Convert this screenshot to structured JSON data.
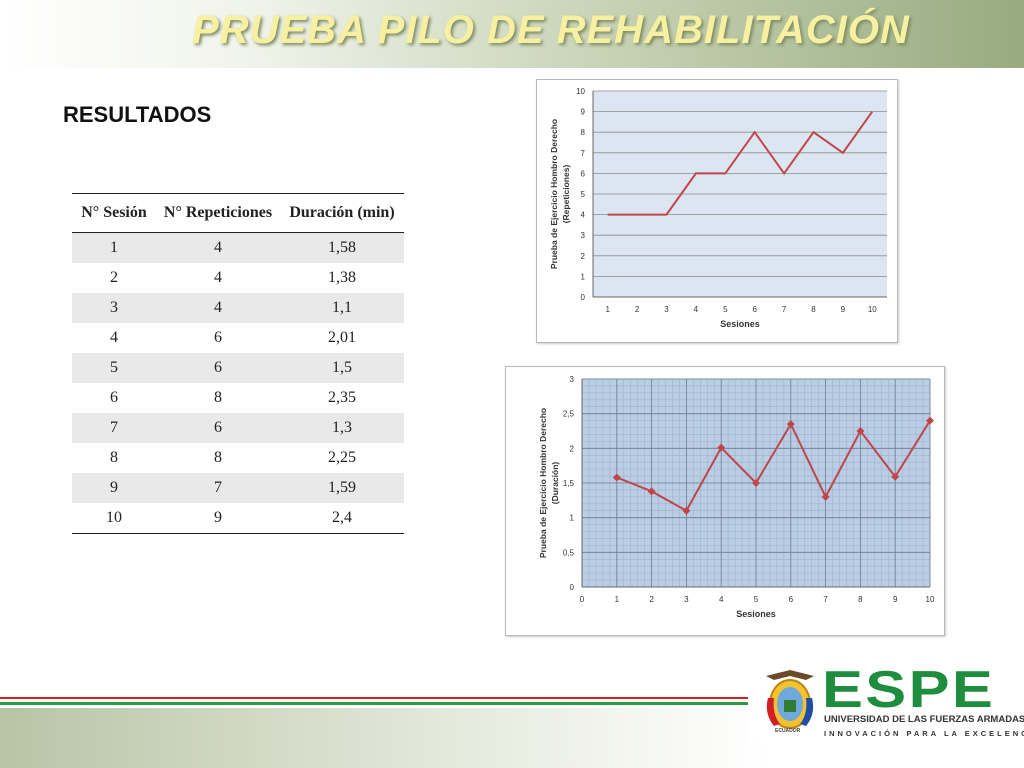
{
  "slide": {
    "title": "PRUEBA PILO DE REHABILITACIÓN",
    "subtitle": "RESULTADOS"
  },
  "table": {
    "headers": [
      "N° Sesión",
      "N° Repeticiones",
      "Duración (min)"
    ],
    "rows": [
      [
        "1",
        "4",
        "1,58"
      ],
      [
        "2",
        "4",
        "1,38"
      ],
      [
        "3",
        "4",
        "1,1"
      ],
      [
        "4",
        "6",
        "2,01"
      ],
      [
        "5",
        "6",
        "1,5"
      ],
      [
        "6",
        "8",
        "2,35"
      ],
      [
        "7",
        "6",
        "1,3"
      ],
      [
        "8",
        "8",
        "2,25"
      ],
      [
        "9",
        "7",
        "1,59"
      ],
      [
        "10",
        "9",
        "2,4"
      ]
    ]
  },
  "chart_data": [
    {
      "type": "line",
      "x": [
        1,
        2,
        3,
        4,
        5,
        6,
        7,
        8,
        9,
        10
      ],
      "values": [
        4,
        4,
        4,
        6,
        6,
        8,
        6,
        8,
        7,
        9
      ],
      "xticks": [
        "1",
        "2",
        "3",
        "4",
        "5",
        "6",
        "7",
        "8",
        "9",
        "10"
      ],
      "yticks": [
        "0",
        "1",
        "2",
        "3",
        "4",
        "5",
        "6",
        "7",
        "8",
        "9",
        "10"
      ],
      "xlabel": "Sesiones",
      "ylabel": "Prueba de Ejercicio Hombro Derecho",
      "ylabel2": "(Repeticiones)",
      "ylim": [
        0,
        10
      ],
      "grid": "horizontal",
      "markers": false
    },
    {
      "type": "line",
      "x": [
        1,
        2,
        3,
        4,
        5,
        6,
        7,
        8,
        9,
        10
      ],
      "values": [
        1.58,
        1.38,
        1.1,
        2.01,
        1.5,
        2.35,
        1.3,
        2.25,
        1.59,
        2.4
      ],
      "xticks": [
        "0",
        "1",
        "2",
        "3",
        "4",
        "5",
        "6",
        "7",
        "8",
        "9",
        "10"
      ],
      "yticks": [
        "0",
        "0,5",
        "1",
        "1,5",
        "2",
        "2,5",
        "3"
      ],
      "xlabel": "Sesiones",
      "ylabel": "Prueba de Ejercicio Hombro Derecho",
      "ylabel2": "(Duración)",
      "xlim": [
        0,
        10
      ],
      "ylim": [
        0,
        3
      ],
      "grid": "major-minor",
      "markers": true
    }
  ],
  "colors": {
    "line": "#c0464a",
    "plot_bg1": "#dce6f2",
    "plot_bg2": "#b9cde5",
    "grid": "#8c8c8c",
    "brand_green": "#1e8e3e",
    "stripe_red": "#d11f26",
    "stripe_green": "#2e9a45",
    "title_color": "#f6f0a0"
  },
  "footer": {
    "brand": "ESPE",
    "university": "UNIVERSIDAD DE LAS FUERZAS ARMADAS",
    "motto": "INNOVACIÓN PARA LA EXCELENCIA",
    "emblem_text": "ECUADOR"
  }
}
